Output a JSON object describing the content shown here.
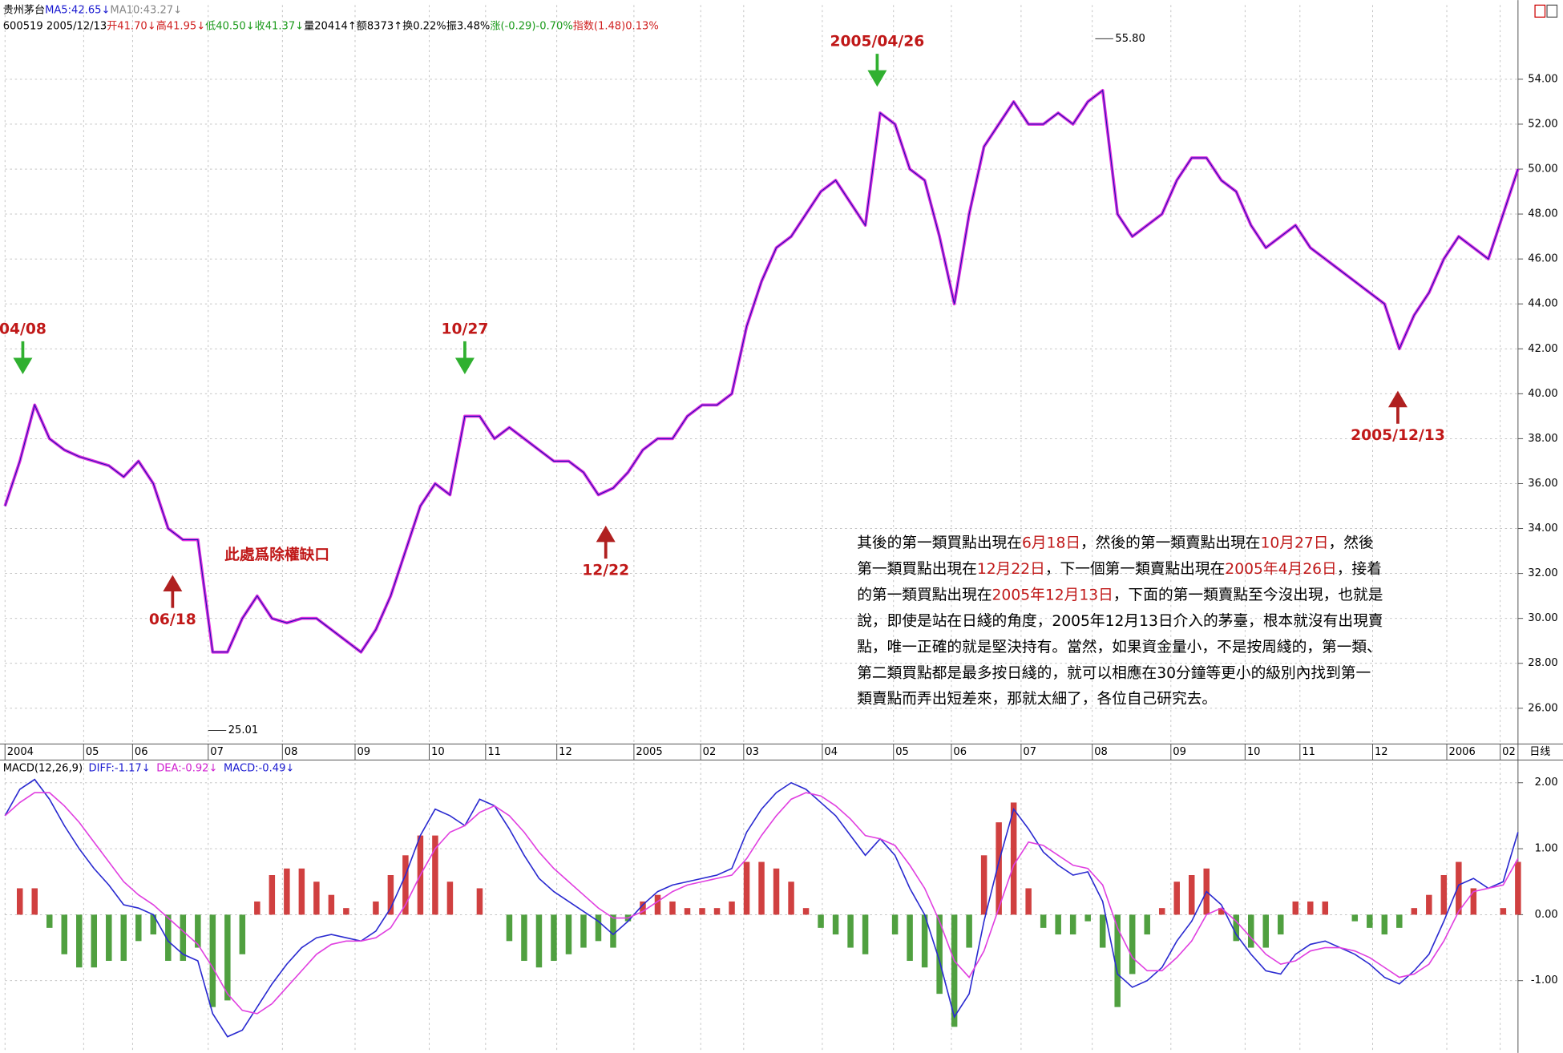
{
  "header": {
    "line1": [
      {
        "text": "贵州茅台",
        "color": "#000000"
      },
      {
        "text": "MA5:42.65↓",
        "color": "#1a1ad0"
      },
      {
        "text": "MA10:43.27↓",
        "color": "#888888"
      }
    ],
    "line2": [
      {
        "text": "600519 2005/12/13",
        "color": "#000000"
      },
      {
        "text": "开41.70↓",
        "color": "#d02020"
      },
      {
        "text": "高41.95↓",
        "color": "#d02020"
      },
      {
        "text": "低40.50↓",
        "color": "#1a9a1a"
      },
      {
        "text": "收41.37↓",
        "color": "#1a9a1a"
      },
      {
        "text": "量20414↑",
        "color": "#000000"
      },
      {
        "text": "额8373↑",
        "color": "#000000"
      },
      {
        "text": "换0.22%",
        "color": "#000000"
      },
      {
        "text": "振3.48%",
        "color": "#000000"
      },
      {
        "text": "涨(-0.29)-0.70%",
        "color": "#1a9a1a"
      },
      {
        "text": "指数(1.48)0.13%",
        "color": "#d02020"
      }
    ]
  },
  "note": [
    [
      {
        "text": "其後的第一類買點出現在"
      },
      {
        "text": "6月18日",
        "color": "#c01818"
      },
      {
        "text": "，然後的第一類賣點出現在"
      },
      {
        "text": "10月27日",
        "color": "#c01818"
      },
      {
        "text": "，然後"
      }
    ],
    [
      {
        "text": "第一類買點出現在"
      },
      {
        "text": "12月22日",
        "color": "#c01818"
      },
      {
        "text": "，下一個第一類賣點出現在"
      },
      {
        "text": "2005年4月26日",
        "color": "#c01818"
      },
      {
        "text": "，接着"
      }
    ],
    [
      {
        "text": "的第一類買點出現在"
      },
      {
        "text": "2005年12月13日",
        "color": "#c01818"
      },
      {
        "text": "，下面的第一類賣點至今沒出現，也就是"
      }
    ],
    [
      {
        "text": "說，即使是站在日綫的角度，2005年12月13日介入的茅臺，根本就沒有出現賣"
      }
    ],
    [
      {
        "text": "點，唯一正確的就是堅決持有。當然，如果資金量小，不是按周綫的，第一類、"
      }
    ],
    [
      {
        "text": "第二類買點都是最多按日綫的，就可以相應在30分鐘等更小的級別內找到第一"
      }
    ],
    [
      {
        "text": "類賣點而弄出短差來，那就太細了，各位自己研究去。"
      }
    ]
  ],
  "chart_data": [
    {
      "type": "line",
      "color": "#e030e0",
      "values": [
        35,
        37,
        39.5,
        38,
        37.5,
        37.2,
        37,
        36.8,
        36.3,
        37,
        36,
        34,
        33.5,
        33.5,
        28.5,
        28.5,
        30,
        31,
        30,
        29.8,
        30,
        30,
        29.5,
        29,
        28.5,
        29.5,
        31,
        33,
        35,
        36,
        35.5,
        39,
        39,
        38,
        38.5,
        38,
        37.5,
        37,
        37,
        36.5,
        35.5,
        35.8,
        36.5,
        37.5,
        38,
        38,
        39,
        39.5,
        39.5,
        40,
        43,
        45,
        46.5,
        47,
        48,
        49,
        49.5,
        48.5,
        47.5,
        52.5,
        52,
        50,
        49.5,
        47,
        44,
        48,
        51,
        52,
        53,
        52,
        52,
        52.5,
        52,
        53,
        53.5,
        48,
        47,
        47.5,
        48,
        49.5,
        50.5,
        50.5,
        49.5,
        49,
        47.5,
        46.5,
        47,
        47.5,
        46.5,
        46,
        45.5,
        45,
        44.5,
        44,
        42,
        43.5,
        44.5,
        46,
        47,
        46.5,
        46,
        48,
        50
      ],
      "xlim": [
        0,
        102
      ],
      "xticks": [
        {
          "value": 0,
          "label": "2004"
        },
        {
          "value": 5.3,
          "label": "05"
        },
        {
          "value": 8.6,
          "label": "06"
        },
        {
          "value": 13.7,
          "label": "07"
        },
        {
          "value": 18.7,
          "label": "08"
        },
        {
          "value": 23.6,
          "label": "09"
        },
        {
          "value": 28.6,
          "label": "10"
        },
        {
          "value": 32.4,
          "label": "11"
        },
        {
          "value": 37.2,
          "label": "12"
        },
        {
          "value": 42.4,
          "label": "2005"
        },
        {
          "value": 46.9,
          "label": "02"
        },
        {
          "value": 49.8,
          "label": "03"
        },
        {
          "value": 55.1,
          "label": "04"
        },
        {
          "value": 59.9,
          "label": "05"
        },
        {
          "value": 63.8,
          "label": "06"
        },
        {
          "value": 68.5,
          "label": "07"
        },
        {
          "value": 73.3,
          "label": "08"
        },
        {
          "value": 78.6,
          "label": "09"
        },
        {
          "value": 83.6,
          "label": "10"
        },
        {
          "value": 87.3,
          "label": "11"
        },
        {
          "value": 92.2,
          "label": "12"
        },
        {
          "value": 97.2,
          "label": "2006"
        },
        {
          "value": 100.8,
          "label": "02"
        }
      ],
      "xlabel": "日线",
      "ylim": [
        24.5,
        57.3
      ],
      "yticks": [
        {
          "value": 26,
          "label": "26.00"
        },
        {
          "value": 28,
          "label": "28.00"
        },
        {
          "value": 30,
          "label": "30.00"
        },
        {
          "value": 32,
          "label": "32.00"
        },
        {
          "value": 34,
          "label": "34.00"
        },
        {
          "value": 36,
          "label": "36.00"
        },
        {
          "value": 38,
          "label": "38.00"
        },
        {
          "value": 40,
          "label": "40.00"
        },
        {
          "value": 42,
          "label": "42.00"
        },
        {
          "value": 44,
          "label": "44.00"
        },
        {
          "value": 46,
          "label": "46.00"
        },
        {
          "value": 48,
          "label": "48.00"
        },
        {
          "value": 50,
          "label": "50.00"
        },
        {
          "value": 52,
          "label": "52.00"
        },
        {
          "value": 54,
          "label": "54.00"
        }
      ],
      "grid": true,
      "price_labels": [
        {
          "value": 55.8,
          "label": "55.80",
          "x": 73.5
        },
        {
          "value": 25.01,
          "label": "25.01",
          "x": 13.7
        }
      ],
      "annotations": [
        {
          "text": "04/08",
          "x": 1.2,
          "y": 41,
          "side": "above",
          "arrow_color": "#30b030"
        },
        {
          "text": "06/18",
          "x": 11.3,
          "y": 31.8,
          "side": "below",
          "arrow_color": "#b02020"
        },
        {
          "text": "10/27",
          "x": 31,
          "y": 41,
          "side": "above",
          "arrow_color": "#30b030"
        },
        {
          "text": "12/22",
          "x": 40.5,
          "y": 34,
          "side": "below",
          "arrow_color": "#b02020"
        },
        {
          "text": "2005/04/26",
          "x": 58.8,
          "y": 53.8,
          "side": "above",
          "arrow_color": "#30b030"
        },
        {
          "text": "2005/12/13",
          "x": 93.9,
          "y": 40,
          "side": "below",
          "arrow_color": "#b02020"
        },
        {
          "text": "此處爲除權缺口",
          "x": 14.8,
          "y": 32.8
        }
      ]
    },
    {
      "type": "macd",
      "title": "MACD(12,26,9)",
      "readouts": [
        {
          "text": "DIFF:-1.17↓",
          "color": "#1a1ad0"
        },
        {
          "text": "DEA:-0.92↓",
          "color": "#d020d0"
        },
        {
          "text": "MACD:-0.49↓",
          "color": "#1a1ad0"
        }
      ],
      "xlim": [
        0,
        102
      ],
      "ylim": [
        -2.08,
        2.3
      ],
      "yticks": [
        {
          "value": 2,
          "label": "2.00"
        },
        {
          "value": 1,
          "label": "1.00"
        },
        {
          "value": 0,
          "label": "0.00"
        },
        {
          "value": -1,
          "label": "-1.00"
        }
      ],
      "grid": true,
      "series": [
        {
          "color": "#2a2ad0",
          "values": [
            1.5,
            1.9,
            2.05,
            1.75,
            1.35,
            1.0,
            0.7,
            0.45,
            0.15,
            0.1,
            0.0,
            -0.4,
            -0.6,
            -0.7,
            -1.5,
            -1.85,
            -1.75,
            -1.4,
            -1.05,
            -0.75,
            -0.5,
            -0.35,
            -0.3,
            -0.35,
            -0.4,
            -0.25,
            0.1,
            0.6,
            1.2,
            1.6,
            1.5,
            1.35,
            1.75,
            1.65,
            1.3,
            0.9,
            0.55,
            0.35,
            0.2,
            0.05,
            -0.1,
            -0.3,
            -0.1,
            0.15,
            0.35,
            0.45,
            0.5,
            0.55,
            0.6,
            0.7,
            1.25,
            1.6,
            1.85,
            2.0,
            1.9,
            1.7,
            1.5,
            1.2,
            0.9,
            1.15,
            0.9,
            0.4,
            0.0,
            -0.7,
            -1.55,
            -1.2,
            -0.1,
            0.8,
            1.6,
            1.3,
            0.95,
            0.75,
            0.6,
            0.65,
            0.2,
            -0.9,
            -1.1,
            -1.0,
            -0.8,
            -0.4,
            -0.1,
            0.35,
            0.15,
            -0.3,
            -0.6,
            -0.85,
            -0.9,
            -0.6,
            -0.45,
            -0.4,
            -0.5,
            -0.6,
            -0.75,
            -0.95,
            -1.05,
            -0.85,
            -0.6,
            -0.1,
            0.45,
            0.55,
            0.4,
            0.5,
            1.25
          ]
        },
        {
          "color": "#e040e0",
          "values": [
            1.5,
            1.7,
            1.85,
            1.85,
            1.65,
            1.4,
            1.1,
            0.8,
            0.5,
            0.3,
            0.15,
            -0.05,
            -0.25,
            -0.45,
            -0.8,
            -1.2,
            -1.45,
            -1.5,
            -1.35,
            -1.1,
            -0.85,
            -0.6,
            -0.45,
            -0.4,
            -0.4,
            -0.35,
            -0.2,
            0.15,
            0.6,
            1.0,
            1.25,
            1.35,
            1.55,
            1.65,
            1.5,
            1.25,
            0.95,
            0.7,
            0.5,
            0.3,
            0.1,
            -0.05,
            -0.05,
            0.05,
            0.2,
            0.35,
            0.45,
            0.5,
            0.55,
            0.6,
            0.85,
            1.2,
            1.5,
            1.75,
            1.85,
            1.8,
            1.65,
            1.45,
            1.2,
            1.15,
            1.05,
            0.75,
            0.4,
            -0.1,
            -0.7,
            -0.95,
            -0.55,
            0.1,
            0.75,
            1.1,
            1.05,
            0.9,
            0.75,
            0.7,
            0.45,
            -0.2,
            -0.65,
            -0.85,
            -0.85,
            -0.65,
            -0.4,
            0.0,
            0.1,
            -0.1,
            -0.35,
            -0.6,
            -0.75,
            -0.7,
            -0.55,
            -0.5,
            -0.5,
            -0.55,
            -0.65,
            -0.8,
            -0.95,
            -0.9,
            -0.75,
            -0.4,
            0.05,
            0.35,
            0.4,
            0.45,
            0.85
          ]
        }
      ],
      "histogram": {
        "colors": [
          "#d04040",
          "#50a040"
        ],
        "values": [
          0,
          0.4,
          0.4,
          -0.2,
          -0.6,
          -0.8,
          -0.8,
          -0.7,
          -0.7,
          -0.4,
          -0.3,
          -0.7,
          -0.7,
          -0.5,
          -1.4,
          -1.3,
          -0.6,
          0.2,
          0.6,
          0.7,
          0.7,
          0.5,
          0.3,
          0.1,
          0,
          0.2,
          0.6,
          0.9,
          1.2,
          1.2,
          0.5,
          0,
          0.4,
          0,
          -0.4,
          -0.7,
          -0.8,
          -0.7,
          -0.6,
          -0.5,
          -0.4,
          -0.5,
          -0.1,
          0.2,
          0.3,
          0.2,
          0.1,
          0.1,
          0.1,
          0.2,
          0.8,
          0.8,
          0.7,
          0.5,
          0.1,
          -0.2,
          -0.3,
          -0.5,
          -0.6,
          0,
          -0.3,
          -0.7,
          -0.8,
          -1.2,
          -1.7,
          -0.5,
          0.9,
          1.4,
          1.7,
          0.4,
          -0.2,
          -0.3,
          -0.3,
          -0.1,
          -0.5,
          -1.4,
          -0.9,
          -0.3,
          0.1,
          0.5,
          0.6,
          0.7,
          0.1,
          -0.4,
          -0.5,
          -0.5,
          -0.3,
          0.2,
          0.2,
          0.2,
          0,
          -0.1,
          -0.2,
          -0.3,
          -0.2,
          0.1,
          0.3,
          0.6,
          0.8,
          0.4,
          0,
          0.1,
          0.8
        ]
      }
    }
  ]
}
